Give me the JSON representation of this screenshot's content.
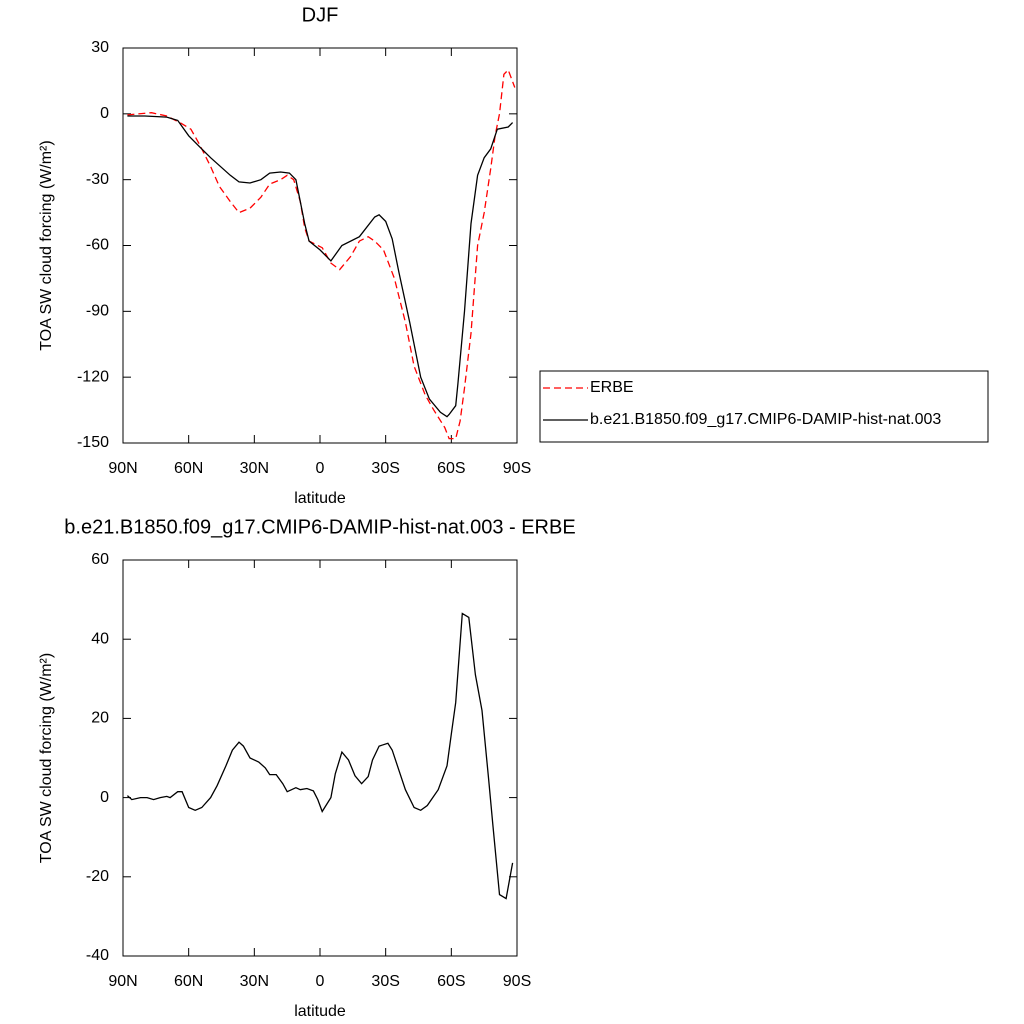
{
  "chart_data": [
    {
      "type": "line",
      "title": "DJF",
      "xlabel": "latitude",
      "ylabel": "TOA SW cloud forcing (W/m²)",
      "xlim": [
        90,
        -90
      ],
      "xticks": [
        {
          "value": 90,
          "label": "90N"
        },
        {
          "value": 60,
          "label": "60N"
        },
        {
          "value": 30,
          "label": "30N"
        },
        0,
        {
          "value": -30,
          "label": "30S"
        },
        {
          "value": -60,
          "label": "60S"
        },
        {
          "value": -90,
          "label": "90S"
        }
      ],
      "ylim": [
        -150,
        30
      ],
      "yticks": [
        30,
        0,
        -30,
        -60,
        -90,
        -120,
        -150
      ],
      "legend": "right",
      "series": [
        {
          "name": "ERBE",
          "color": "#ff0000",
          "line_style": "dashed",
          "x": [
            88,
            77,
            70,
            64,
            59,
            55,
            50,
            46,
            41,
            37,
            32,
            27,
            23,
            18,
            15,
            12,
            9,
            7,
            5,
            -1,
            -5,
            -9,
            -14,
            -18,
            -22,
            -25,
            -29,
            -34,
            -39,
            -43,
            -48,
            -52,
            -57,
            -59,
            -62,
            -64,
            -66,
            -69,
            -72,
            -75,
            -78,
            -80,
            -82,
            -84,
            -86,
            -89
          ],
          "values": [
            -0.5,
            0.5,
            -1,
            -4,
            -7,
            -14,
            -24,
            -33,
            -40,
            -45,
            -43,
            -38,
            -32,
            -30,
            -28,
            -30,
            -40,
            -52,
            -58,
            -61,
            -68,
            -71,
            -65,
            -58,
            -56,
            -58,
            -62,
            -75,
            -95,
            -115,
            -128,
            -135,
            -143,
            -148,
            -148,
            -140,
            -125,
            -100,
            -60,
            -45,
            -25,
            -10,
            0,
            18,
            20,
            12
          ]
        },
        {
          "name": "b.e21.B1850.f09_g17.CMIP6-DAMIP-hist-nat.003",
          "color": "#000000",
          "line_style": "solid",
          "x": [
            88,
            80,
            70,
            65,
            60,
            55,
            50,
            41,
            37,
            32,
            27,
            23,
            18,
            14,
            11,
            9,
            7,
            5,
            0,
            -5,
            -10,
            -18,
            -25,
            -27,
            -30,
            -33,
            -36,
            -41,
            -46,
            -50,
            -55,
            -58,
            -59,
            -62,
            -63,
            -66,
            -69,
            -72,
            -75,
            -78,
            -81,
            -86,
            -88
          ],
          "values": [
            -1,
            -1,
            -1.5,
            -3,
            -10,
            -15,
            -20,
            -28,
            -31,
            -31.5,
            -30,
            -27,
            -26.5,
            -27,
            -30,
            -40,
            -50,
            -58,
            -62,
            -67,
            -60,
            -56,
            -47,
            -46,
            -49,
            -57,
            -72,
            -95,
            -120,
            -130,
            -136,
            -138,
            -137,
            -133,
            -123,
            -90,
            -50,
            -28,
            -20,
            -16,
            -7,
            -6,
            -4
          ]
        }
      ]
    },
    {
      "type": "line",
      "title": "b.e21.B1850.f09_g17.CMIP6-DAMIP-hist-nat.003 - ERBE",
      "xlabel": "latitude",
      "ylabel": "TOA SW cloud forcing (W/m²)",
      "xlim": [
        90,
        -90
      ],
      "xticks": [
        {
          "value": 90,
          "label": "90N"
        },
        {
          "value": 60,
          "label": "60N"
        },
        {
          "value": 30,
          "label": "30N"
        },
        0,
        {
          "value": -30,
          "label": "30S"
        },
        {
          "value": -60,
          "label": "60S"
        },
        {
          "value": -90,
          "label": "90S"
        }
      ],
      "ylim": [
        -40,
        60
      ],
      "yticks": [
        60,
        40,
        20,
        0,
        -20,
        -40
      ],
      "series": [
        {
          "color": "#000000",
          "line_style": "solid",
          "x": [
            88,
            86,
            82,
            79,
            76,
            73,
            70,
            68.5,
            65,
            63,
            60,
            57,
            54,
            50,
            47,
            43,
            40,
            37,
            35,
            32,
            28,
            25,
            23,
            20,
            17,
            15,
            11,
            9,
            6,
            3,
            1,
            -1,
            -5,
            -7,
            -10,
            -13,
            -16,
            -19,
            -22,
            -24,
            -27,
            -31,
            -33,
            -36,
            -39,
            -43,
            -46,
            -49,
            -54,
            -58,
            -60,
            -62,
            -65,
            -68,
            -71,
            -74,
            -77,
            -79,
            -82,
            -85,
            -88
          ],
          "values": [
            0.5,
            -0.5,
            0,
            0,
            -0.5,
            0,
            0.3,
            0,
            1.5,
            1.5,
            -2.5,
            -3.2,
            -2.5,
            0,
            3,
            8,
            12,
            14,
            13,
            10,
            9,
            7.5,
            5.8,
            5.8,
            3.5,
            1.5,
            2.5,
            2,
            2.3,
            1.7,
            -0.5,
            -3.5,
            0,
            6,
            11.5,
            9.5,
            5.5,
            3.5,
            5.3,
            9.5,
            13,
            13.7,
            12,
            7,
            2,
            -2.5,
            -3.2,
            -2,
            2,
            8,
            16,
            24,
            46.5,
            45.5,
            31,
            22,
            5,
            -7,
            -24.5,
            -25.5,
            -16.5
          ]
        }
      ]
    }
  ]
}
